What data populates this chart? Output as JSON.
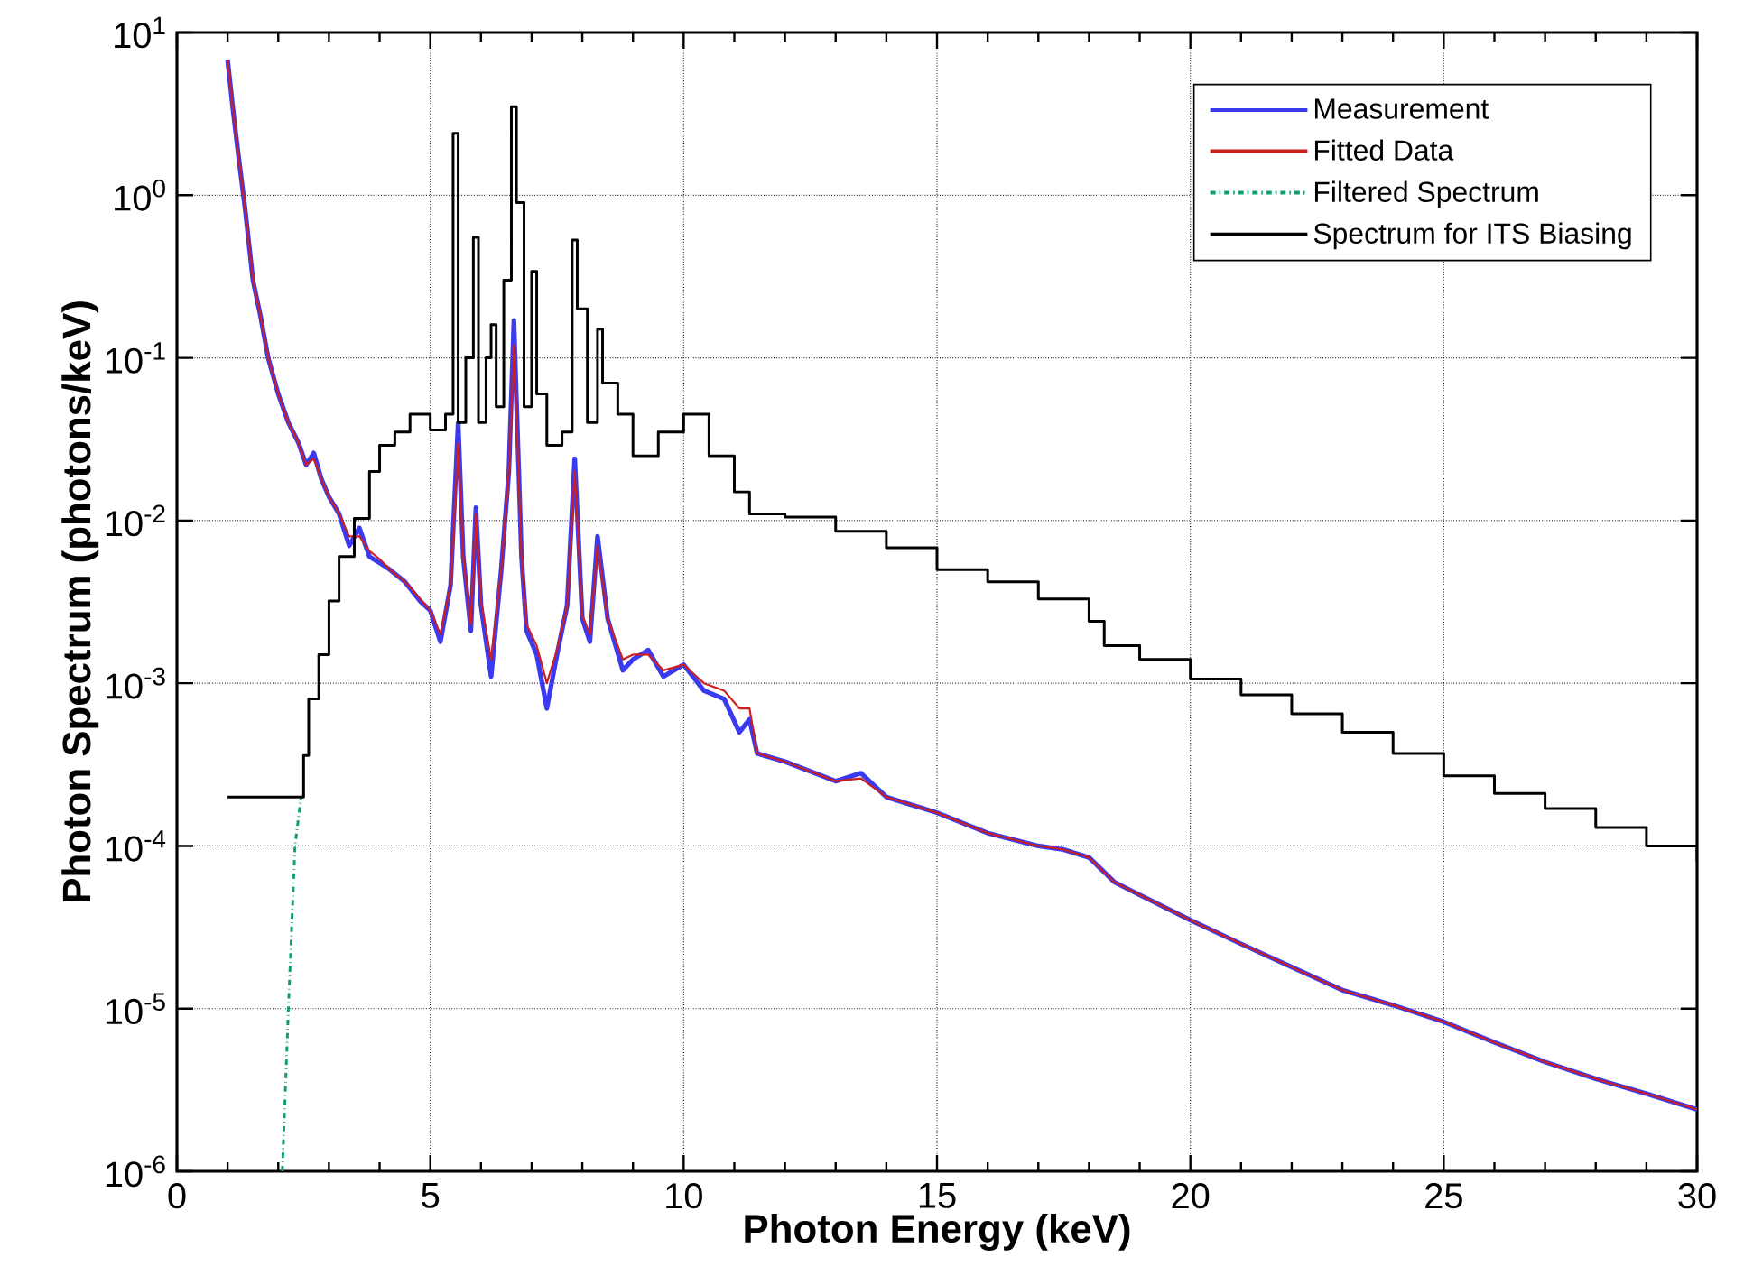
{
  "chart_data": {
    "type": "line",
    "xlabel": "Photon Energy (keV)",
    "ylabel": "Photon Spectrum (photons/keV)",
    "log": "y",
    "grid": true,
    "legend": "top right",
    "xlim": [
      0,
      30
    ],
    "xticks": [
      0,
      5,
      10,
      15,
      20,
      25,
      30
    ],
    "ylim": [
      1e-06,
      10
    ],
    "yticks": [
      {
        "value": 1e-06,
        "label": "10$^{-6}$"
      },
      {
        "value": 1e-05,
        "label": "10$^{-5}$"
      },
      {
        "value": 0.0001,
        "label": "10$^{-4}$"
      },
      {
        "value": 0.001,
        "label": "10$^{-3}$"
      },
      {
        "value": 0.01,
        "label": "10$^{-2}$"
      },
      {
        "value": 0.1,
        "label": "10$^{-1}$"
      },
      {
        "value": 1,
        "label": "10$^{0}$"
      },
      {
        "value": 10,
        "label": "10$^{1}$"
      }
    ],
    "series": [
      {
        "name": "Measurement",
        "color": "#3a3af0",
        "x": [
          1,
          1.1,
          1.2,
          1.35,
          1.5,
          1.65,
          1.8,
          2.0,
          2.2,
          2.4,
          2.55,
          2.7,
          2.85,
          3.0,
          3.2,
          3.4,
          3.6,
          3.8,
          4.0,
          4.2,
          4.5,
          4.8,
          5.0,
          5.2,
          5.4,
          5.55,
          5.65,
          5.8,
          5.9,
          6.0,
          6.2,
          6.4,
          6.55,
          6.65,
          6.8,
          6.9,
          7.1,
          7.3,
          7.5,
          7.7,
          7.85,
          8.0,
          8.15,
          8.3,
          8.5,
          8.8,
          9.0,
          9.3,
          9.6,
          10.0,
          10.4,
          10.8,
          11.1,
          11.3,
          11.45,
          12,
          13,
          13.5,
          14,
          15,
          16,
          17,
          17.5,
          18,
          18.5,
          19,
          20,
          21,
          22,
          23,
          24,
          25,
          26,
          27,
          28,
          29,
          30
        ],
        "values": [
          6.8,
          3.5,
          1.9,
          0.8,
          0.3,
          0.18,
          0.1,
          0.06,
          0.04,
          0.03,
          0.022,
          0.026,
          0.018,
          0.014,
          0.011,
          0.007,
          0.009,
          0.006,
          0.0055,
          0.005,
          0.0042,
          0.0032,
          0.0028,
          0.0018,
          0.004,
          0.04,
          0.006,
          0.0021,
          0.012,
          0.003,
          0.0011,
          0.005,
          0.02,
          0.17,
          0.006,
          0.0021,
          0.0015,
          0.0007,
          0.0015,
          0.003,
          0.024,
          0.0025,
          0.0018,
          0.008,
          0.0025,
          0.0012,
          0.0014,
          0.0016,
          0.0011,
          0.0013,
          0.0009,
          0.0008,
          0.0005,
          0.0006,
          0.00037,
          0.00033,
          0.00025,
          0.00028,
          0.0002,
          0.00016,
          0.00012,
          0.0001,
          9.5e-05,
          8.5e-05,
          6e-05,
          5e-05,
          3.5e-05,
          2.5e-05,
          1.8e-05,
          1.3e-05,
          1.05e-05,
          8.3e-06,
          6.2e-06,
          4.7e-06,
          3.7e-06,
          3e-06,
          2.4e-06
        ]
      },
      {
        "name": "Fitted Data",
        "color": "#cc2020",
        "x": [
          1,
          1.1,
          1.2,
          1.35,
          1.5,
          1.65,
          1.8,
          2.0,
          2.2,
          2.4,
          2.55,
          2.7,
          2.85,
          3.0,
          3.2,
          3.4,
          3.6,
          3.8,
          4.0,
          4.2,
          4.5,
          4.8,
          5.0,
          5.2,
          5.4,
          5.55,
          5.65,
          5.8,
          5.9,
          6.0,
          6.2,
          6.4,
          6.55,
          6.65,
          6.8,
          6.9,
          7.1,
          7.3,
          7.5,
          7.7,
          7.85,
          8.0,
          8.15,
          8.3,
          8.5,
          8.8,
          9.0,
          9.3,
          9.6,
          10.0,
          10.4,
          10.8,
          11.1,
          11.3,
          11.45,
          12,
          13,
          13.5,
          14,
          15,
          16,
          17,
          17.5,
          18,
          18.5,
          19,
          20,
          21,
          22,
          23,
          24,
          25,
          26,
          27,
          28,
          29,
          30
        ],
        "values": [
          6.8,
          3.5,
          1.9,
          0.8,
          0.3,
          0.18,
          0.1,
          0.06,
          0.04,
          0.03,
          0.022,
          0.024,
          0.018,
          0.014,
          0.011,
          0.008,
          0.008,
          0.0065,
          0.0058,
          0.005,
          0.0042,
          0.0033,
          0.0028,
          0.002,
          0.004,
          0.03,
          0.006,
          0.0023,
          0.011,
          0.0032,
          0.0014,
          0.005,
          0.02,
          0.12,
          0.006,
          0.0023,
          0.0017,
          0.001,
          0.0016,
          0.003,
          0.02,
          0.0026,
          0.002,
          0.007,
          0.0025,
          0.0014,
          0.0015,
          0.0015,
          0.0012,
          0.0013,
          0.001,
          0.0009,
          0.0007,
          0.0007,
          0.00037,
          0.00033,
          0.00025,
          0.00026,
          0.0002,
          0.00016,
          0.00012,
          0.0001,
          9.5e-05,
          8.5e-05,
          6e-05,
          5e-05,
          3.5e-05,
          2.5e-05,
          1.8e-05,
          1.3e-05,
          1.05e-05,
          8.3e-06,
          6.2e-06,
          4.7e-06,
          3.7e-06,
          3e-06,
          2.4e-06
        ]
      },
      {
        "name": "Filtered Spectrum",
        "color": "#10a070",
        "line_style": "dashdot",
        "x": [
          2.08,
          2.2,
          2.33,
          2.45
        ],
        "values": [
          1e-06,
          1e-05,
          0.0001,
          0.0002
        ]
      },
      {
        "name": "Spectrum for ITS Biasing",
        "color": "#000000",
        "type": "step",
        "x": [
          1,
          2.5,
          2.6,
          2.8,
          3.0,
          3.2,
          3.5,
          3.8,
          4.0,
          4.3,
          4.6,
          5.0,
          5.3,
          5.45,
          5.55,
          5.7,
          5.85,
          5.95,
          6.1,
          6.2,
          6.3,
          6.45,
          6.6,
          6.7,
          6.85,
          7.0,
          7.1,
          7.3,
          7.6,
          7.8,
          7.9,
          8.1,
          8.3,
          8.4,
          8.7,
          9.0,
          9.5,
          10.0,
          10.5,
          11.0,
          11.3,
          11.5,
          12,
          13,
          14,
          15,
          16,
          17,
          18,
          18.3,
          19,
          20,
          21,
          22,
          23,
          24,
          25,
          26,
          27,
          28,
          29,
          30
        ],
        "values": [
          0.0002,
          0.00036,
          0.0008,
          0.0015,
          0.0032,
          0.006,
          0.0103,
          0.02,
          0.029,
          0.035,
          0.045,
          0.036,
          0.045,
          2.4,
          0.04,
          0.1,
          0.55,
          0.04,
          0.1,
          0.16,
          0.05,
          0.3,
          3.5,
          0.9,
          0.05,
          0.34,
          0.06,
          0.029,
          0.035,
          0.53,
          0.2,
          0.04,
          0.15,
          0.07,
          0.045,
          0.025,
          0.035,
          0.045,
          0.025,
          0.015,
          0.011,
          0.011,
          0.0105,
          0.0086,
          0.0068,
          0.005,
          0.0042,
          0.0033,
          0.0024,
          0.0017,
          0.0014,
          0.00106,
          0.00085,
          0.00065,
          0.0005,
          0.00037,
          0.00027,
          0.00021,
          0.00017,
          0.00013,
          0.0001,
          8e-05
        ]
      }
    ]
  }
}
